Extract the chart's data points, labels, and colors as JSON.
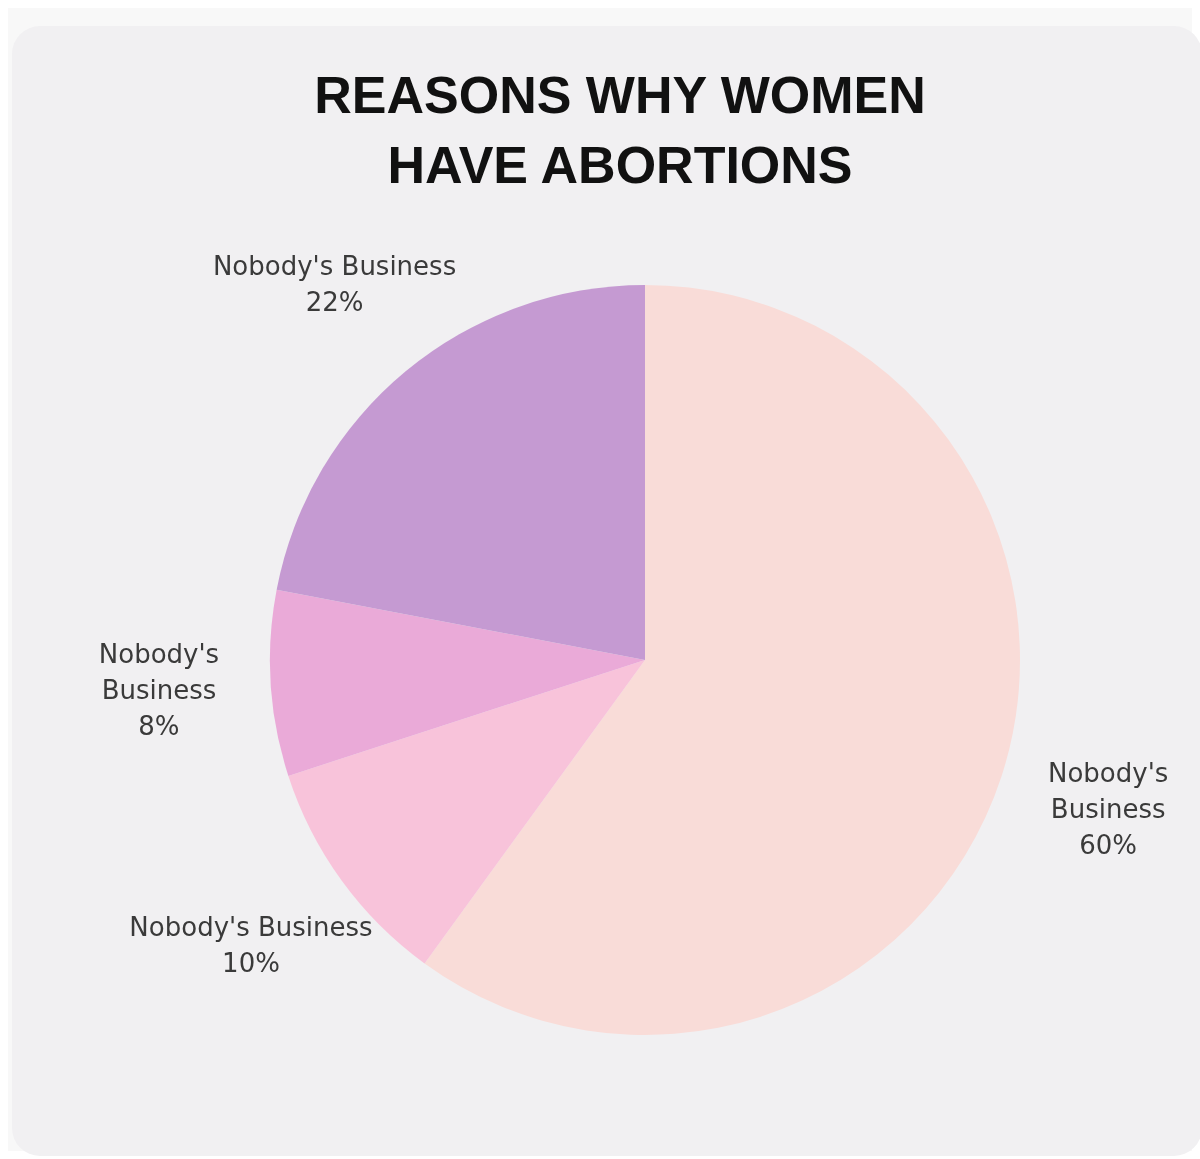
{
  "chart_data": {
    "type": "pie",
    "title": "REASONS WHY WOMEN HAVE ABORTIONS",
    "categories": [
      "Nobody's Business",
      "Nobody's Business",
      "Nobody's Business",
      "Nobody's Business"
    ],
    "values": [
      60,
      10,
      8,
      22
    ],
    "value_labels": [
      "60%",
      "10%",
      "8%",
      "22%"
    ],
    "colors": [
      "#f9dcd8",
      "#f8c3da",
      "#eaaad8",
      "#c59ad2"
    ],
    "legend": false
  }
}
